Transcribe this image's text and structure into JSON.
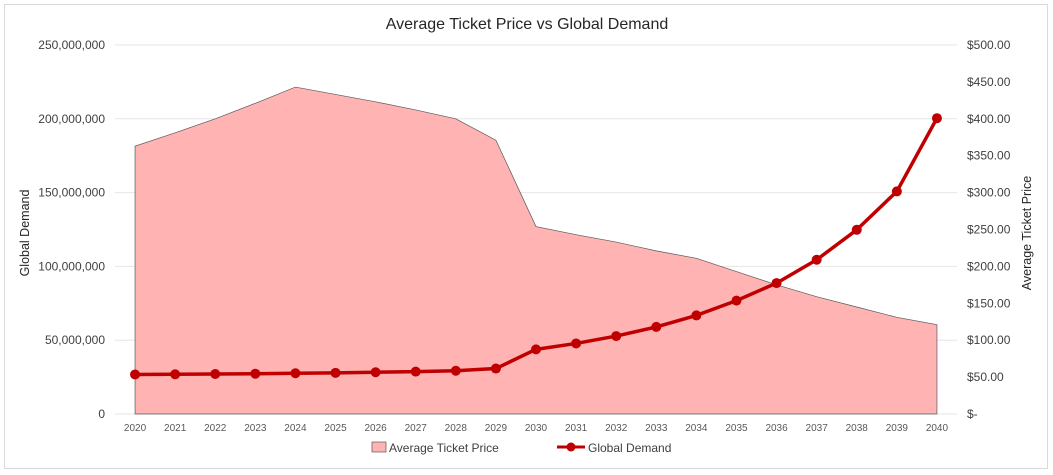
{
  "chart_data": {
    "type": "line",
    "title": "Average Ticket Price vs Global Demand",
    "categories": [
      "2020",
      "2021",
      "2022",
      "2023",
      "2024",
      "2025",
      "2026",
      "2027",
      "2028",
      "2029",
      "2030",
      "2031",
      "2032",
      "2033",
      "2034",
      "2035",
      "2036",
      "2037",
      "2038",
      "2039",
      "2040"
    ],
    "y_left": {
      "label": "Global Demand",
      "range": [
        0,
        250000000
      ],
      "ticks": [
        "0",
        "50,000,000",
        "100,000,000",
        "150,000,000",
        "200,000,000",
        "250,000,000"
      ]
    },
    "y_right": {
      "label": "Average Ticket Price",
      "range": [
        0,
        500
      ],
      "ticks": [
        "$-",
        "$50.00",
        "$100.00",
        "$150.00",
        "$200.00",
        "$250.00",
        "$300.00",
        "$350.00",
        "$400.00",
        "$450.00",
        "$500.00"
      ]
    },
    "series": [
      {
        "name": "Average Ticket Price",
        "kind": "area",
        "axis": "right",
        "color": "#ffb3b3",
        "edge_color": "#595959",
        "values": [
          363,
          381,
          400,
          421,
          443,
          433,
          423,
          412,
          400,
          371,
          254,
          243,
          233,
          221,
          211,
          193,
          175,
          159,
          145,
          131,
          121
        ]
      },
      {
        "name": "Global Demand",
        "kind": "line-marker",
        "axis": "left",
        "color": "#c00000",
        "values": [
          26800000,
          26900000,
          27100000,
          27300000,
          27600000,
          27900000,
          28300000,
          28700000,
          29300000,
          30800000,
          43800000,
          47800000,
          52800000,
          59000000,
          66800000,
          76800000,
          88700000,
          104500000,
          124800000,
          150800000,
          200400000
        ]
      }
    ],
    "grid": true,
    "legend": "bottom-center"
  }
}
